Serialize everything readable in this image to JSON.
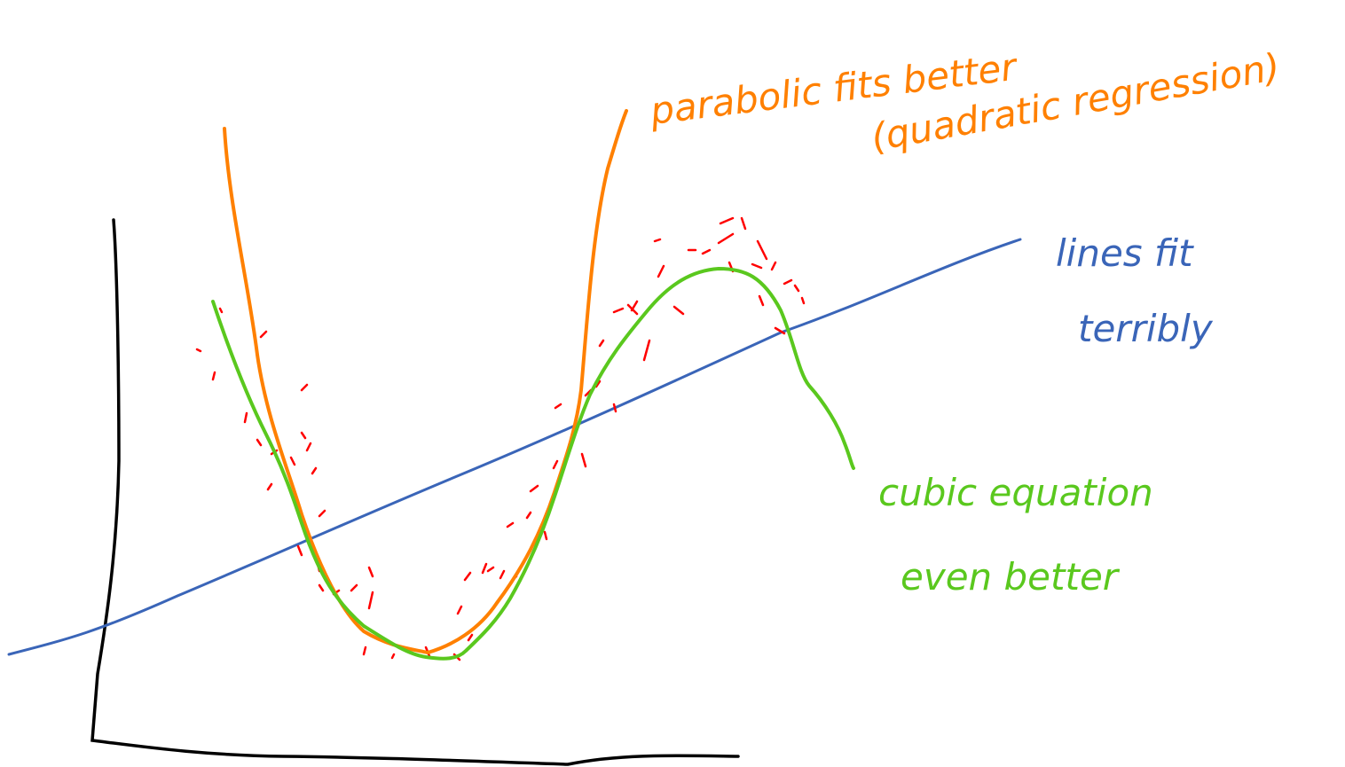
{
  "annotations": {
    "parabolic": {
      "line1": "parabolic fits better",
      "line2": "(quadratic regression)"
    },
    "linear": {
      "line1": "lines fit",
      "line2": "terribly"
    },
    "cubic": {
      "line1": "cubic equation",
      "line2": "even better"
    }
  }
}
